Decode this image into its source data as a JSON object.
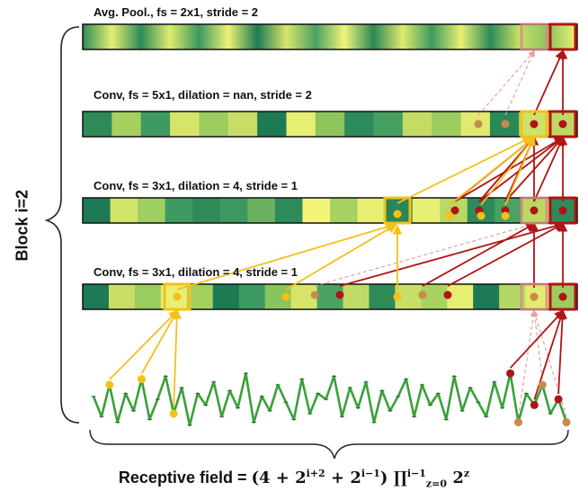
{
  "layers": [
    {
      "id": "pool",
      "label": "Avg. Pool., fs = 2x1, stride = 2"
    },
    {
      "id": "conv3",
      "label": "Conv, fs = 5x1, dilation = nan, stride = 2"
    },
    {
      "id": "conv2",
      "label": "Conv, fs = 3x1, dilation = 4, stride = 1"
    },
    {
      "id": "conv1",
      "label": "Conv, fs = 3x1, dilation = 4, stride = 1"
    }
  ],
  "block_label": "Block i=2",
  "receptive_field": {
    "prefix": "Receptive field = ",
    "formula_head": "(4 + 2",
    "exp1": "i+2",
    "mid": " + 2",
    "exp2": "i−1",
    "close": ") ∏",
    "prod_sup": "i−1",
    "prod_sub": "z=0",
    "base": " 2",
    "exp3": "z"
  },
  "colors": {
    "yellow_path": "#f4c01a",
    "red_path": "#b01414",
    "signal": "#3aa03a",
    "dark_green": "#1f7a5c",
    "light_yellow": "#f2f27a"
  },
  "layer_cells": {
    "conv3": [
      "#2e8b57",
      "#a8d060",
      "#3e9a60",
      "#d6e46a",
      "#9ccc5e",
      "#c7dd66",
      "#1e7a55",
      "#e6ef72",
      "#8ec45c",
      "#2d8a5a",
      "#46a062",
      "#c4dc66",
      "#9ccc5e",
      "#e0ea6e",
      "#2b8858",
      "#cde26c",
      "#bfd864"
    ],
    "conv2": [
      "#1e7a55",
      "#d2e46a",
      "#9fcf60",
      "#3e9a60",
      "#2e8b57",
      "#3b9860",
      "#6ab260",
      "#2d8a5a",
      "#f4f47a",
      "#a6d262",
      "#e8ef72",
      "#2a8656",
      "#e6ef72",
      "#b9d864",
      "#2d8a5a",
      "#4aa262",
      "#bcd864",
      "#2d8a5a"
    ],
    "conv1": [
      "#1e7a55",
      "#c8de66",
      "#9acc5e",
      "#e8ef72",
      "#a4d062",
      "#1e7a55",
      "#3b9860",
      "#8ac45e",
      "#d6e46a",
      "#4aa262",
      "#bfda66",
      "#2e8b57",
      "#c8de66",
      "#a8d262",
      "#e6ef72",
      "#1e7a55",
      "#b4d664",
      "#e2ec70",
      "#9ccc5e"
    ]
  },
  "pool_gradient": [
    "#2e8b57",
    "#e4ee72",
    "#2d8a5a",
    "#dfec6e",
    "#3b9860",
    "#eef275",
    "#1e7a55",
    "#d8e66c",
    "#4aa262",
    "#f2f47a",
    "#2b8858",
    "#e0ea6e",
    "#3e9a60",
    "#eaf074",
    "#2d8a5a",
    "#c8de66",
    "#8ac45e",
    "#f0f276"
  ],
  "signal_values": [
    0.55,
    0.2,
    0.75,
    0.1,
    0.6,
    0.3,
    0.85,
    0.15,
    0.5,
    0.9,
    0.25,
    0.7,
    0.05,
    0.6,
    0.4,
    0.8,
    0.2,
    0.65,
    0.35,
    0.95,
    0.1,
    0.55,
    0.3,
    0.75,
    0.45,
    0.15,
    0.85,
    0.25,
    0.6,
    0.5,
    0.9,
    0.2,
    0.7,
    0.35,
    0.8,
    0.1,
    0.65,
    0.3,
    0.55,
    0.85,
    0.2,
    0.75,
    0.4,
    0.6,
    0.15,
    0.9,
    0.3,
    0.7,
    0.45,
    0.2,
    0.8,
    0.35,
    0.95,
    0.1,
    0.6,
    0.4,
    0.75,
    0.25,
    0.5,
    0.1
  ]
}
